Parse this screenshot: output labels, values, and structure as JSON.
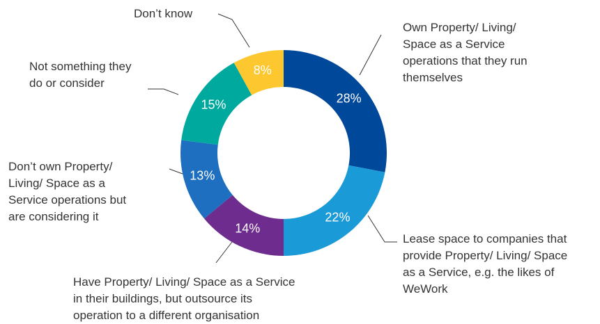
{
  "chart_data": {
    "type": "donut",
    "categories": [
      "Own Property/ Living/ Space as a Service operations that they run themselves",
      "Lease space to companies that provide Property/ Living/ Space as a Service, e.g. the likes of WeWork",
      "Have Property/ Living/ Space as a Service in their buildings, but outsource its operation to a different organisation",
      "Don’t own Property/ Living/ Space as a Service operations but are considering it",
      "Not something they do or consider",
      "Don’t know"
    ],
    "values": [
      28,
      22,
      14,
      13,
      15,
      8
    ],
    "value_labels": [
      "28%",
      "22%",
      "14%",
      "13%",
      "15%",
      "8%"
    ],
    "colors": [
      "#00489a",
      "#1a9ad6",
      "#6d2c8e",
      "#1e6fc0",
      "#00a99d",
      "#fdc82f"
    ]
  }
}
